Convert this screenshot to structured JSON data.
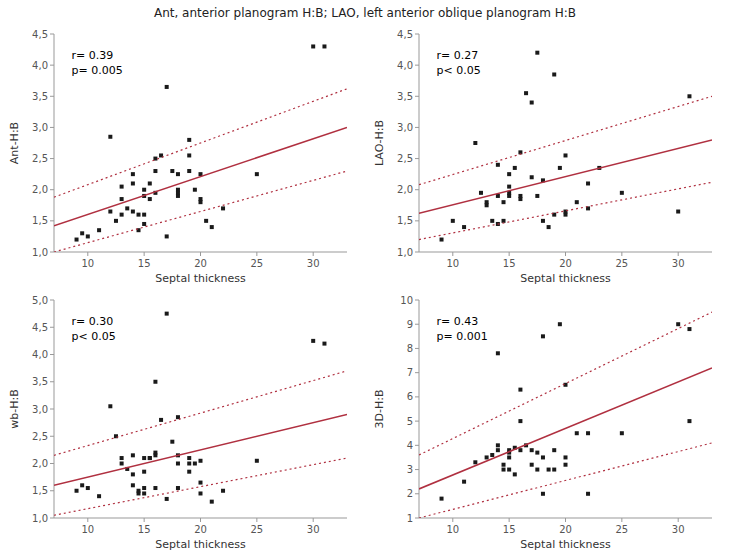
{
  "title": "Ant, anterior planogram H:B; LAO, left anterior oblique planogram H:B",
  "chart_data": [
    {
      "type": "scatter",
      "ylabel": "Ant-H:B",
      "xlabel": "Septal thickness",
      "annotations": [
        "r= 0.39",
        "p= 0.005"
      ],
      "xlim": [
        7,
        33
      ],
      "xticks": [
        10,
        15,
        20,
        25,
        30
      ],
      "ylim": [
        1.0,
        4.5
      ],
      "yticks": [
        {
          "value": 1.0,
          "label": "1,0"
        },
        {
          "value": 1.5,
          "label": "1,5"
        },
        {
          "value": 2.0,
          "label": "2,0"
        },
        {
          "value": 2.5,
          "label": "2,5"
        },
        {
          "value": 3.0,
          "label": "3,0"
        },
        {
          "value": 3.5,
          "label": "3,5"
        },
        {
          "value": 4.0,
          "label": "4,0"
        },
        {
          "value": 4.5,
          "label": "4,5"
        }
      ],
      "grid": false,
      "series": [
        {
          "type": "scatter",
          "marker": "square",
          "color": "#1a1a1a",
          "x": [
            9,
            9.5,
            10,
            11,
            12,
            12,
            12.5,
            13,
            13,
            13,
            13.5,
            14,
            14,
            14,
            14.5,
            14.5,
            15,
            15,
            15,
            15,
            15.5,
            15.5,
            16,
            16,
            16,
            16.5,
            17,
            17,
            17.5,
            18,
            18,
            18,
            18,
            19,
            19,
            19,
            19.5,
            20,
            20,
            20,
            20.5,
            21,
            22,
            25,
            30,
            31
          ],
          "values": [
            1.2,
            1.3,
            1.25,
            1.35,
            2.85,
            1.65,
            1.5,
            1.6,
            2.05,
            1.85,
            1.7,
            2.1,
            2.25,
            1.65,
            1.35,
            1.6,
            1.45,
            1.9,
            2.0,
            1.6,
            2.1,
            1.85,
            2.3,
            1.95,
            2.5,
            2.55,
            1.25,
            3.65,
            2.3,
            2.0,
            2.25,
            1.9,
            1.95,
            2.8,
            2.55,
            2.3,
            2.0,
            1.85,
            1.8,
            2.25,
            1.5,
            1.4,
            1.7,
            2.25,
            4.3,
            4.3
          ]
        },
        {
          "type": "line",
          "line_style": "solid",
          "color": "#b03040",
          "x": [
            7,
            33
          ],
          "values": [
            1.42,
            3.0
          ]
        },
        {
          "type": "line",
          "line_style": "dotted",
          "color": "#b03040",
          "x": [
            7,
            33
          ],
          "values": [
            1.0,
            2.3
          ]
        },
        {
          "type": "line",
          "line_style": "dotted",
          "color": "#b03040",
          "x": [
            7,
            33
          ],
          "values": [
            1.88,
            3.62
          ]
        }
      ]
    },
    {
      "type": "scatter",
      "ylabel": "LAO-H:B",
      "xlabel": "Septal thickness",
      "annotations": [
        "r= 0.27",
        "p< 0.05"
      ],
      "xlim": [
        7,
        33
      ],
      "xticks": [
        10,
        15,
        20,
        25,
        30
      ],
      "ylim": [
        1.0,
        4.5
      ],
      "yticks": [
        {
          "value": 1.0,
          "label": "1,0"
        },
        {
          "value": 1.5,
          "label": "1,5"
        },
        {
          "value": 2.0,
          "label": "2,0"
        },
        {
          "value": 2.5,
          "label": "2,5"
        },
        {
          "value": 3.0,
          "label": "3,0"
        },
        {
          "value": 3.5,
          "label": "3,5"
        },
        {
          "value": 4.0,
          "label": "4,0"
        },
        {
          "value": 4.5,
          "label": "4,5"
        }
      ],
      "grid": false,
      "series": [
        {
          "type": "scatter",
          "marker": "square",
          "color": "#1a1a1a",
          "x": [
            9,
            10,
            11,
            12,
            12.5,
            13,
            13,
            13.5,
            14,
            14,
            14,
            14.5,
            14.5,
            15,
            15,
            15,
            15,
            15.5,
            16,
            16,
            16,
            16.5,
            17,
            17,
            17.5,
            17.5,
            18,
            18,
            18.5,
            19,
            19,
            19.5,
            20,
            20,
            20,
            21,
            22,
            22,
            23,
            25,
            30,
            31
          ],
          "values": [
            1.2,
            1.5,
            1.4,
            2.75,
            1.95,
            1.75,
            1.8,
            1.5,
            1.9,
            2.4,
            1.45,
            1.8,
            1.5,
            1.9,
            1.95,
            2.05,
            2.25,
            2.35,
            1.9,
            1.85,
            2.6,
            3.55,
            3.4,
            2.2,
            1.9,
            4.2,
            1.5,
            2.15,
            1.4,
            1.6,
            3.85,
            2.35,
            1.6,
            1.65,
            2.55,
            1.8,
            1.7,
            2.1,
            2.35,
            1.95,
            1.65,
            3.5
          ]
        },
        {
          "type": "line",
          "line_style": "solid",
          "color": "#b03040",
          "x": [
            7,
            33
          ],
          "values": [
            1.62,
            2.8
          ]
        },
        {
          "type": "line",
          "line_style": "dotted",
          "color": "#b03040",
          "x": [
            7,
            33
          ],
          "values": [
            1.2,
            2.12
          ]
        },
        {
          "type": "line",
          "line_style": "dotted",
          "color": "#b03040",
          "x": [
            7,
            33
          ],
          "values": [
            2.08,
            3.5
          ]
        }
      ]
    },
    {
      "type": "scatter",
      "ylabel": "wb-H:B",
      "xlabel": "Septal thickness",
      "annotations": [
        "r= 0.30",
        "p< 0.05"
      ],
      "xlim": [
        7,
        33
      ],
      "xticks": [
        10,
        15,
        20,
        25,
        30
      ],
      "ylim": [
        1.0,
        5.0
      ],
      "yticks": [
        {
          "value": 1.0,
          "label": "1,0"
        },
        {
          "value": 1.5,
          "label": "1,5"
        },
        {
          "value": 2.0,
          "label": "2,0"
        },
        {
          "value": 2.5,
          "label": "2,5"
        },
        {
          "value": 3.0,
          "label": "3,0"
        },
        {
          "value": 3.5,
          "label": "3,5"
        },
        {
          "value": 4.0,
          "label": "4,0"
        },
        {
          "value": 4.5,
          "label": "4,5"
        },
        {
          "value": 5.0,
          "label": "5,0"
        }
      ],
      "grid": false,
      "series": [
        {
          "type": "scatter",
          "marker": "square",
          "color": "#1a1a1a",
          "x": [
            9,
            9.5,
            10,
            11,
            12,
            12.5,
            13,
            13,
            13.5,
            14,
            14,
            14,
            14.5,
            14.5,
            15,
            15,
            15,
            15,
            15.5,
            15.5,
            16,
            16,
            16,
            16,
            16.5,
            17,
            17,
            17.5,
            18,
            18,
            18,
            18,
            19,
            19,
            19,
            19.5,
            20,
            20,
            20,
            21,
            22,
            25,
            30,
            31
          ],
          "values": [
            1.5,
            1.6,
            1.55,
            1.4,
            3.05,
            2.5,
            2.0,
            2.1,
            1.9,
            1.8,
            2.15,
            1.6,
            1.45,
            1.5,
            1.45,
            1.55,
            2.1,
            1.85,
            2.1,
            2.1,
            2.15,
            1.55,
            2.2,
            3.5,
            2.8,
            1.35,
            4.75,
            2.4,
            2.0,
            2.15,
            1.55,
            2.85,
            2.0,
            2.1,
            1.85,
            2.0,
            2.05,
            1.65,
            1.45,
            1.3,
            1.5,
            2.05,
            4.25,
            4.2
          ]
        },
        {
          "type": "line",
          "line_style": "solid",
          "color": "#b03040",
          "x": [
            7,
            33
          ],
          "values": [
            1.6,
            2.9
          ]
        },
        {
          "type": "line",
          "line_style": "dotted",
          "color": "#b03040",
          "x": [
            7,
            33
          ],
          "values": [
            1.05,
            2.1
          ]
        },
        {
          "type": "line",
          "line_style": "dotted",
          "color": "#b03040",
          "x": [
            7,
            33
          ],
          "values": [
            2.15,
            3.7
          ]
        }
      ]
    },
    {
      "type": "scatter",
      "ylabel": "3D-H:B",
      "xlabel": "Septal thickness",
      "annotations": [
        "r= 0.43",
        "p= 0.001"
      ],
      "xlim": [
        7,
        33
      ],
      "xticks": [
        10,
        15,
        20,
        25,
        30
      ],
      "ylim": [
        1,
        10
      ],
      "yticks": [
        1,
        2,
        3,
        4,
        5,
        6,
        7,
        8,
        9,
        10
      ],
      "grid": false,
      "series": [
        {
          "type": "scatter",
          "marker": "square",
          "color": "#1a1a1a",
          "x": [
            9,
            11,
            12,
            13,
            13.5,
            14,
            14,
            14,
            14.5,
            14.5,
            15,
            15,
            15,
            15,
            15.5,
            15.5,
            16,
            16,
            16,
            16.5,
            17,
            17,
            17.5,
            17.5,
            18,
            18,
            18,
            18.5,
            19,
            19,
            19.5,
            20,
            20,
            20,
            21,
            22,
            22,
            25,
            30,
            31,
            31
          ],
          "values": [
            1.8,
            2.5,
            3.3,
            3.5,
            3.6,
            3.8,
            4.0,
            7.8,
            3.0,
            3.2,
            3.0,
            3.5,
            3.7,
            3.8,
            2.8,
            3.9,
            6.3,
            5.0,
            3.8,
            4.0,
            3.8,
            3.2,
            3.7,
            3.0,
            3.5,
            2.0,
            8.5,
            3.0,
            3.0,
            3.8,
            9.0,
            3.5,
            3.2,
            6.5,
            4.5,
            2.0,
            4.5,
            4.5,
            9.0,
            8.8,
            5.0
          ]
        },
        {
          "type": "line",
          "line_style": "solid",
          "color": "#b03040",
          "x": [
            7,
            33
          ],
          "values": [
            2.2,
            7.2
          ]
        },
        {
          "type": "line",
          "line_style": "dotted",
          "color": "#b03040",
          "x": [
            7,
            33
          ],
          "values": [
            1.0,
            4.1
          ]
        },
        {
          "type": "line",
          "line_style": "dotted",
          "color": "#b03040",
          "x": [
            7,
            33
          ],
          "values": [
            3.6,
            9.5
          ]
        }
      ]
    }
  ]
}
